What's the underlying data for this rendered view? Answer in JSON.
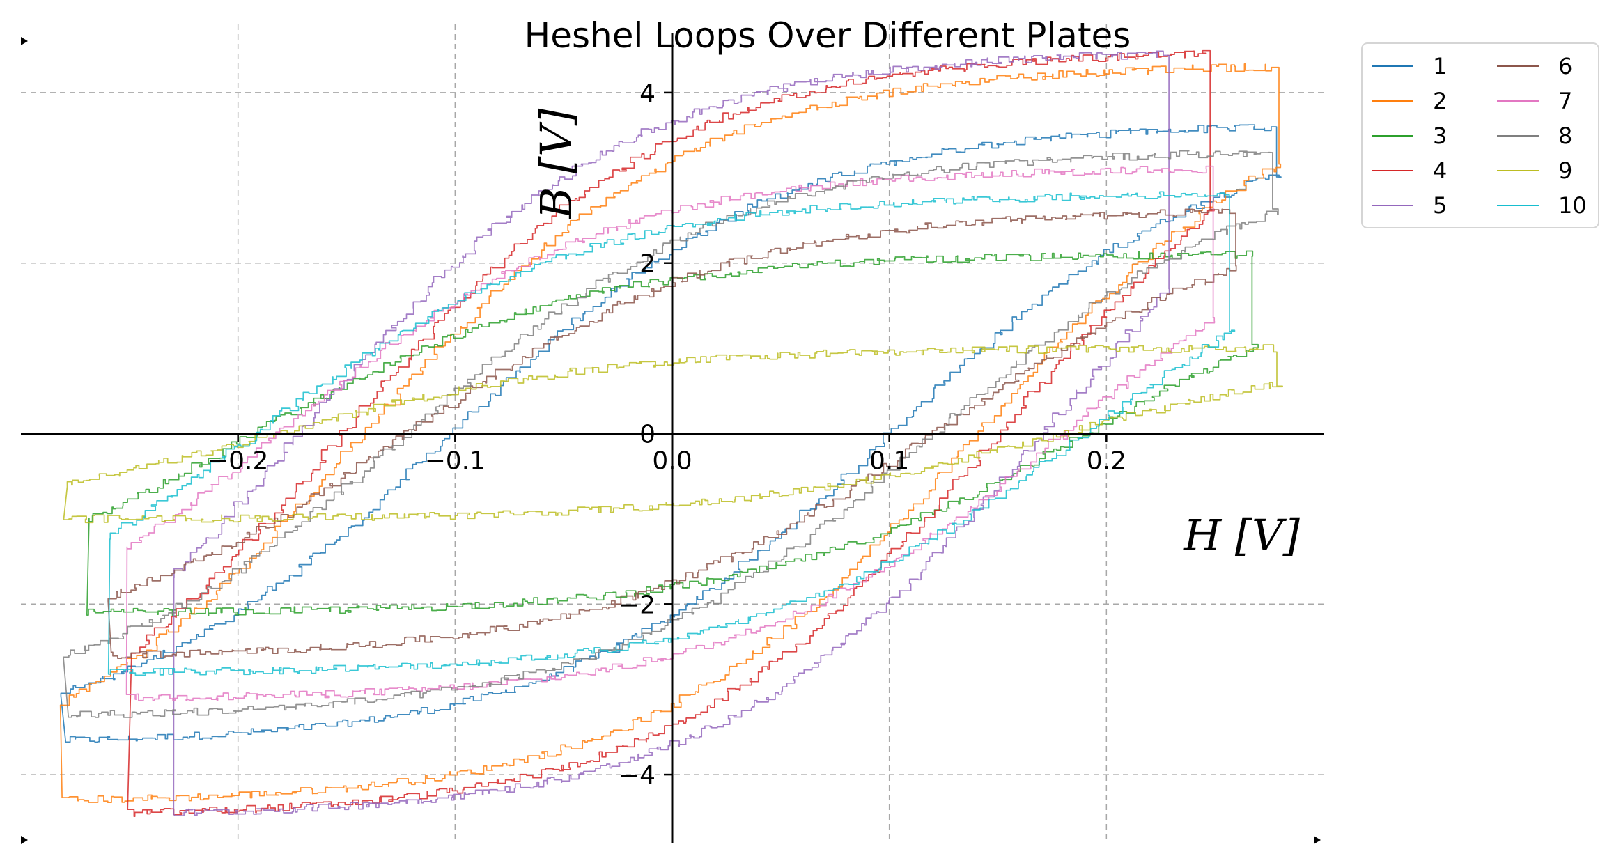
{
  "chart_data": {
    "type": "line",
    "title": "Heshel Loops Over Different Plates",
    "xlabel": "H [V]",
    "ylabel": "B [V]",
    "xlim": [
      -0.3,
      0.3
    ],
    "ylim": [
      -4.8,
      4.8
    ],
    "xticks": [
      -0.2,
      -0.1,
      0.0,
      0.1,
      0.2
    ],
    "xtick_labels": [
      "−0.2",
      "−0.1",
      "0.0",
      "0.1",
      "0.2"
    ],
    "yticks": [
      -4,
      -2,
      0,
      2,
      4
    ],
    "ytick_labels": [
      "−4",
      "−2",
      "0",
      "2",
      "4"
    ],
    "grid": true,
    "legend": {
      "position": "outside top-right",
      "columns": 2
    },
    "series": [
      {
        "name": "1",
        "color": "#1f77b4",
        "hmax": 0.28,
        "bmax": 3.6,
        "hc": 0.1,
        "br": 2.9,
        "hsat": 0.15
      },
      {
        "name": "2",
        "color": "#ff7f0e",
        "hmax": 0.28,
        "bmax": 4.3,
        "hc": 0.14,
        "br": 2.9,
        "hsat": 0.15
      },
      {
        "name": "3",
        "color": "#2ca02c",
        "hmax": 0.27,
        "bmax": 2.1,
        "hc": 0.19,
        "br": 1.4,
        "hsat": 0.15
      },
      {
        "name": "4",
        "color": "#d62728",
        "hmax": 0.25,
        "bmax": 4.45,
        "hc": 0.15,
        "br": 3.6,
        "hsat": 0.15
      },
      {
        "name": "5",
        "color": "#9467bd",
        "hmax": 0.23,
        "bmax": 4.45,
        "hc": 0.17,
        "br": 3.6,
        "hsat": 0.15
      },
      {
        "name": "6",
        "color": "#8c564b",
        "hmax": 0.26,
        "bmax": 2.6,
        "hc": 0.12,
        "br": 1.8,
        "hsat": 0.15
      },
      {
        "name": "7",
        "color": "#e377c2",
        "hmax": 0.25,
        "bmax": 3.1,
        "hc": 0.18,
        "br": 2.2,
        "hsat": 0.15
      },
      {
        "name": "8",
        "color": "#7f7f7f",
        "hmax": 0.28,
        "bmax": 3.3,
        "hc": 0.12,
        "br": 2.3,
        "hsat": 0.15
      },
      {
        "name": "9",
        "color": "#bcbd22",
        "hmax": 0.28,
        "bmax": 1.0,
        "hc": 0.18,
        "br": 0.5,
        "hsat": 0.15
      },
      {
        "name": "10",
        "color": "#17becf",
        "hmax": 0.26,
        "bmax": 2.8,
        "hc": 0.19,
        "br": 2.3,
        "hsat": 0.15
      }
    ]
  }
}
